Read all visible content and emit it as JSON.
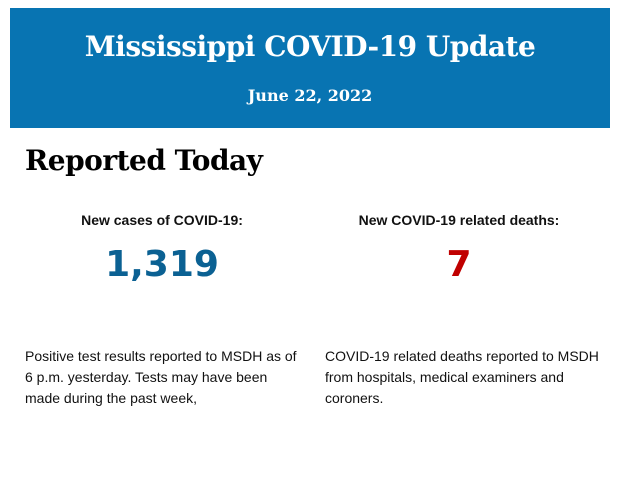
{
  "header": {
    "title": "Mississippi COVID-19 Update",
    "date": "June 22, 2022",
    "background": "#0874b2"
  },
  "section_title": "Reported Today",
  "cases": {
    "label": "New cases of COVID-19:",
    "value": "1,319",
    "color": "#0b6193",
    "description": "Positive test results reported to MSDH as of 6 p.m. yesterday. Tests may have been made during the past week,"
  },
  "deaths": {
    "label": "New COVID-19 related deaths:",
    "value": "7",
    "color": "#c00000",
    "description": "COVID-19 related deaths reported to MSDH from hospitals, medical examiners and coroners."
  }
}
